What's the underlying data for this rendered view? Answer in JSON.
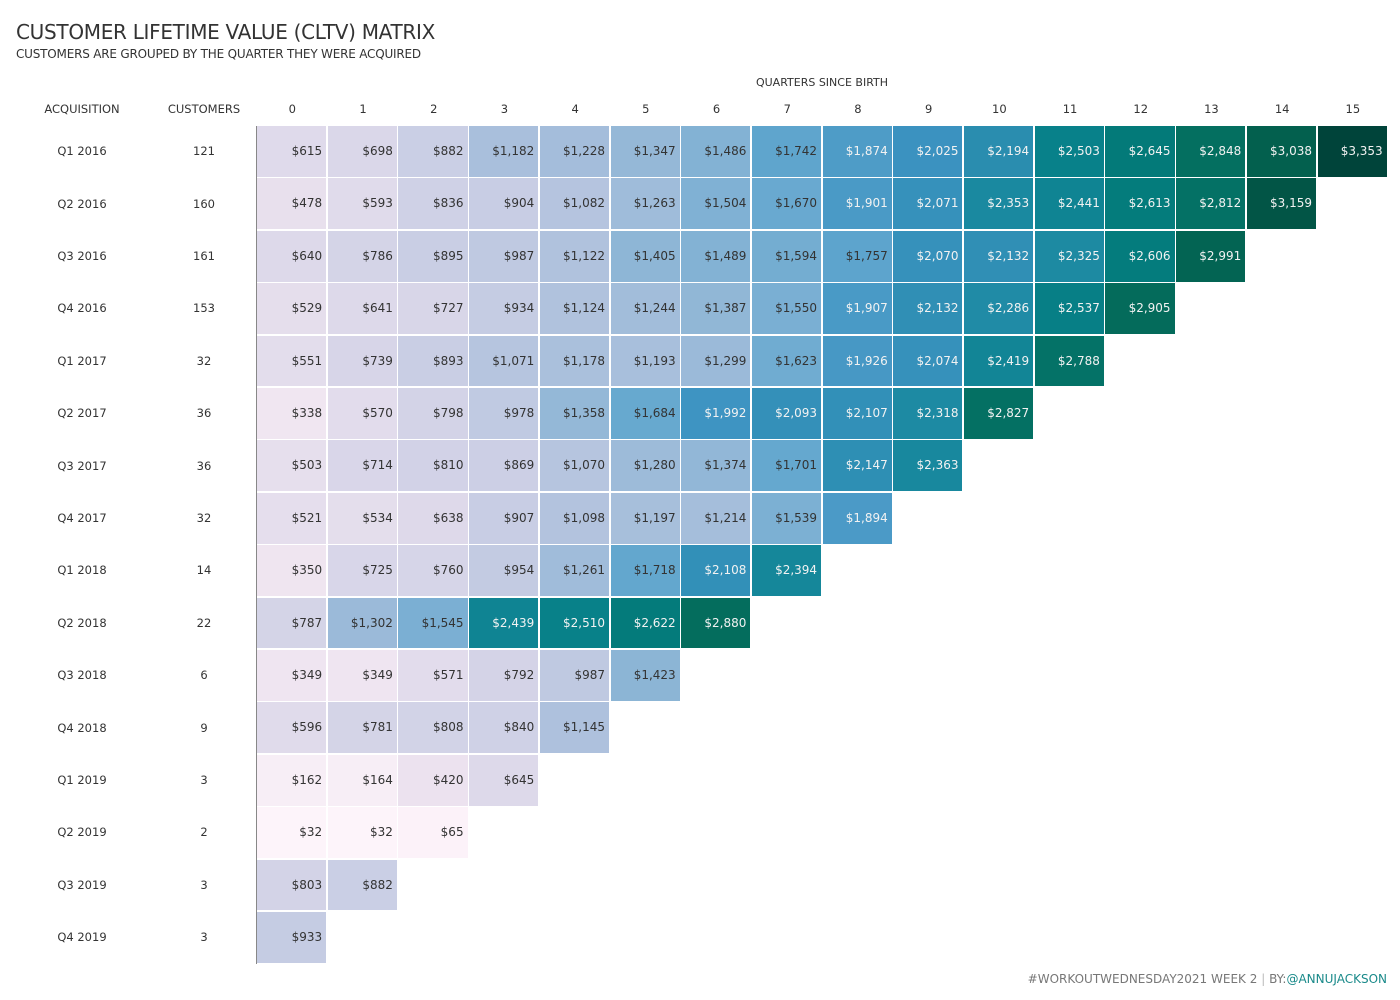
{
  "title": "CUSTOMER LIFETIME VALUE (CLTV) MATRIX",
  "subtitle": "CUSTOMERS ARE GROUPED BY THE QUARTER THEY WERE ACQUIRED",
  "footer": {
    "tag": "#WORKOUTWEDNESDAY2021",
    "week": "WEEK 2",
    "sep": "|",
    "by": "BY:",
    "handle": "@ANNUJACKSON"
  },
  "chart_data": {
    "type": "heatmap",
    "title": "CUSTOMER LIFETIME VALUE (CLTV) MATRIX",
    "subtitle": "CUSTOMERS ARE GROUPED BY THE QUARTER THEY WERE ACQUIRED",
    "xlabel": "QUARTERS SINCE BIRTH",
    "row_header": "ACQUISITION",
    "customers_header": "CUSTOMERS",
    "columns": [
      "0",
      "1",
      "2",
      "3",
      "4",
      "5",
      "6",
      "7",
      "8",
      "9",
      "10",
      "11",
      "12",
      "13",
      "14",
      "15"
    ],
    "color_scale": {
      "low": "#fdf4fa",
      "mid": "#3d93c2",
      "high": "#00443a"
    },
    "rows": [
      {
        "label": "Q1 2016",
        "customers": "121",
        "values": [
          615,
          698,
          882,
          1182,
          1228,
          1347,
          1486,
          1742,
          1874,
          2025,
          2194,
          2503,
          2645,
          2848,
          3038,
          3353
        ]
      },
      {
        "label": "Q2 2016",
        "customers": "160",
        "values": [
          478,
          593,
          836,
          904,
          1082,
          1263,
          1504,
          1670,
          1901,
          2071,
          2353,
          2441,
          2613,
          2812,
          3159
        ]
      },
      {
        "label": "Q3 2016",
        "customers": "161",
        "values": [
          640,
          786,
          895,
          987,
          1122,
          1405,
          1489,
          1594,
          1757,
          2070,
          2132,
          2325,
          2606,
          2991
        ]
      },
      {
        "label": "Q4 2016",
        "customers": "153",
        "values": [
          529,
          641,
          727,
          934,
          1124,
          1244,
          1387,
          1550,
          1907,
          2132,
          2286,
          2537,
          2905
        ]
      },
      {
        "label": "Q1 2017",
        "customers": "32",
        "values": [
          551,
          739,
          893,
          1071,
          1178,
          1193,
          1299,
          1623,
          1926,
          2074,
          2419,
          2788
        ]
      },
      {
        "label": "Q2 2017",
        "customers": "36",
        "values": [
          338,
          570,
          798,
          978,
          1358,
          1684,
          1992,
          2093,
          2107,
          2318,
          2827
        ]
      },
      {
        "label": "Q3 2017",
        "customers": "36",
        "values": [
          503,
          714,
          810,
          869,
          1070,
          1280,
          1374,
          1701,
          2147,
          2363
        ]
      },
      {
        "label": "Q4 2017",
        "customers": "32",
        "values": [
          521,
          534,
          638,
          907,
          1098,
          1197,
          1214,
          1539,
          1894
        ]
      },
      {
        "label": "Q1 2018",
        "customers": "14",
        "values": [
          350,
          725,
          760,
          954,
          1261,
          1718,
          2108,
          2394
        ]
      },
      {
        "label": "Q2 2018",
        "customers": "22",
        "values": [
          787,
          1302,
          1545,
          2439,
          2510,
          2622,
          2880
        ]
      },
      {
        "label": "Q3 2018",
        "customers": "6",
        "values": [
          349,
          349,
          571,
          792,
          987,
          1423
        ]
      },
      {
        "label": "Q4 2018",
        "customers": "9",
        "values": [
          596,
          781,
          808,
          840,
          1145
        ]
      },
      {
        "label": "Q1 2019",
        "customers": "3",
        "values": [
          162,
          164,
          420,
          645
        ]
      },
      {
        "label": "Q2 2019",
        "customers": "2",
        "values": [
          32,
          32,
          65
        ]
      },
      {
        "label": "Q3 2019",
        "customers": "3",
        "values": [
          803,
          882
        ]
      },
      {
        "label": "Q4 2019",
        "customers": "3",
        "values": [
          933
        ]
      }
    ]
  }
}
